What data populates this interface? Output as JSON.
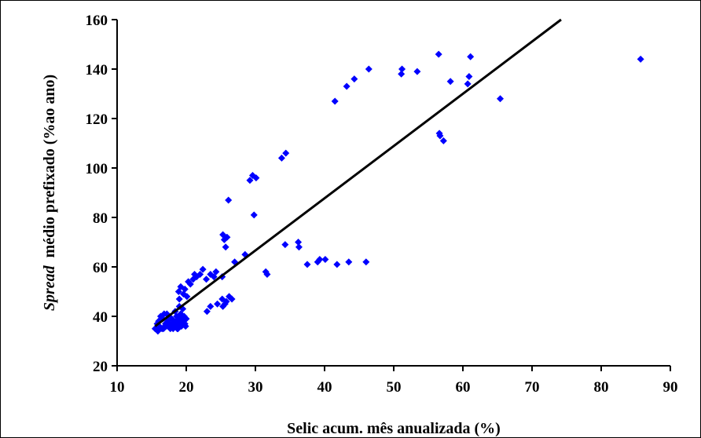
{
  "chart_data": {
    "type": "scatter",
    "title": "",
    "xlabel": "Selic acum. mês anualizada (%)",
    "ylabel_italic": "Spread",
    "ylabel_rest": "  médio prefixado (%ao ano)",
    "xlim": [
      10,
      90
    ],
    "ylim": [
      20,
      160
    ],
    "xticks": [
      10,
      20,
      30,
      40,
      50,
      60,
      70,
      80,
      90
    ],
    "yticks": [
      20,
      40,
      60,
      80,
      100,
      120,
      140,
      160
    ],
    "grid": false,
    "legend": "none",
    "marker_color": "#0000ff",
    "line_color": "#000000",
    "trendline": {
      "x": [
        15.5,
        74.2
      ],
      "y": [
        36,
        160
      ]
    },
    "series": [
      {
        "x": [
          15.5,
          15.8,
          16.0,
          16.1,
          16.3,
          16.5,
          16.6,
          16.8,
          17.0,
          17.1,
          17.3,
          17.5,
          17.7,
          17.9,
          18.0,
          18.2,
          18.4,
          18.5,
          18.6,
          18.8,
          18.9,
          19.0,
          19.1,
          19.2,
          19.3,
          19.5,
          19.6,
          19.7,
          19.8,
          20.0,
          16.2,
          16.9,
          17.6,
          18.3,
          19.4,
          15.9,
          16.7,
          17.4,
          18.1,
          18.7,
          19.9,
          17.2,
          18.9,
          19.0,
          19.2,
          19.6,
          19.8,
          20.1,
          20.3,
          20.6,
          21.0,
          21.2,
          21.5,
          22.0,
          22.4,
          22.9,
          23.5,
          24.0,
          24.3,
          25.2,
          25.3,
          25.5,
          25.7,
          25.9,
          25.3,
          25.6,
          23.0,
          23.5,
          24.5,
          25.2,
          25.8,
          26.2,
          26.6,
          26.1,
          27.0,
          28.5,
          29.2,
          29.6,
          30.1,
          29.8,
          31.5,
          31.7,
          33.8,
          34.4,
          34.3,
          36.2,
          36.3,
          37.5,
          39.0,
          39.3,
          40.1,
          41.8,
          43.5,
          46.0,
          41.5,
          43.2,
          44.3,
          46.4,
          51.1,
          51.2,
          53.4,
          56.5,
          56.6,
          56.7,
          57.2,
          58.2,
          60.7,
          60.9,
          61.1,
          65.4,
          85.7
        ],
        "y": [
          35,
          37,
          38,
          36,
          40,
          35,
          39,
          41,
          37,
          36,
          38,
          40,
          35,
          39,
          37,
          36,
          42,
          38,
          40,
          35,
          37,
          44,
          39,
          41,
          36,
          43,
          38,
          40,
          37,
          39,
          35,
          36,
          37,
          36,
          38,
          34,
          35,
          36,
          35,
          35,
          36,
          41,
          50,
          47,
          52,
          49,
          51,
          48,
          54,
          53,
          55,
          57,
          56,
          57,
          59,
          55,
          57,
          56,
          58,
          56,
          73,
          71,
          68,
          72,
          44,
          45,
          42,
          44,
          45,
          47,
          46,
          48,
          47,
          87,
          62,
          65,
          95,
          97,
          96,
          81,
          58,
          57,
          104,
          106,
          69,
          70,
          68,
          61,
          62,
          63,
          63,
          61,
          62,
          62,
          127,
          133,
          136,
          140,
          138,
          140,
          139,
          146,
          114,
          113,
          111,
          135,
          134,
          137,
          145,
          128,
          144
        ]
      }
    ]
  }
}
